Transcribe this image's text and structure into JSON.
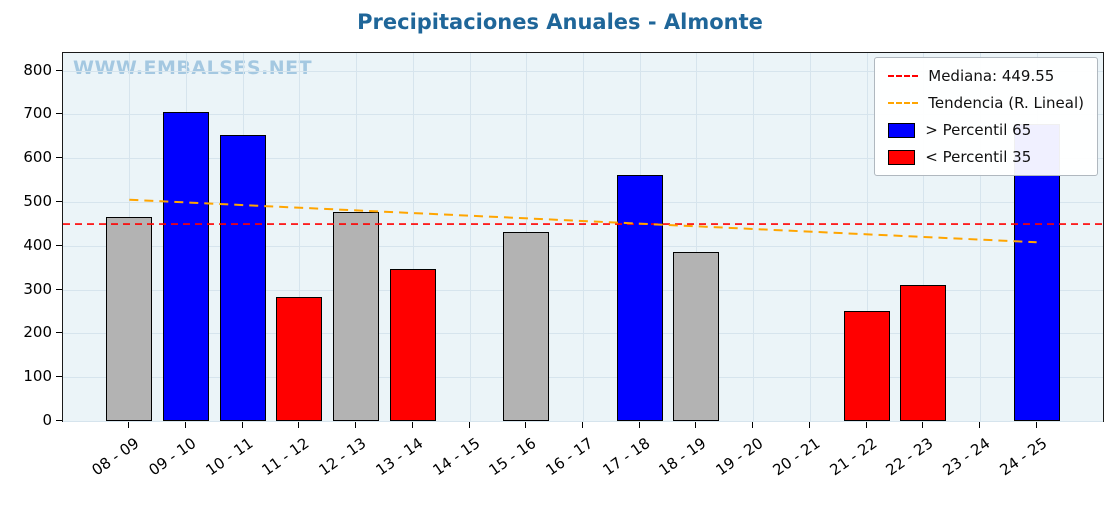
{
  "chart_data": {
    "type": "bar",
    "title": "Precipitaciones Anuales - Almonte",
    "watermark": "WWW.EMBALSES.NET",
    "categories": [
      "08 - 09",
      "09 - 10",
      "10 - 11",
      "11 - 12",
      "12 - 13",
      "13 - 14",
      "14 - 15",
      "15 - 16",
      "16 - 17",
      "17 - 18",
      "18 - 19",
      "19 - 20",
      "20 - 21",
      "21 - 22",
      "22 - 23",
      "23 - 24",
      "24 - 25"
    ],
    "values": [
      465,
      705,
      652,
      282,
      478,
      347,
      0,
      432,
      0,
      562,
      385,
      0,
      0,
      251,
      311,
      0,
      678
    ],
    "bar_colors": [
      "gray",
      "blue",
      "blue",
      "red",
      "gray",
      "red",
      "none",
      "gray",
      "none",
      "blue",
      "gray",
      "none",
      "none",
      "red",
      "red",
      "none",
      "blue"
    ],
    "yticks": [
      0,
      100,
      200,
      300,
      400,
      500,
      600,
      700,
      800
    ],
    "ylim": [
      0,
      840
    ],
    "median": 449.55,
    "trend": {
      "start": 505,
      "end": 408
    },
    "grid": true,
    "legend_position": "top-right",
    "colors": {
      "blue": "#0000ff",
      "red": "#ff0000",
      "gray": "#b3b3b3",
      "median_line": "#ff0000",
      "trend_line": "#ffa500",
      "title": "#1f6699",
      "watermark": "#a4c8e1",
      "plot_bg": "#ebf4f8",
      "grid": "#d6e4ed"
    },
    "legend": [
      {
        "label": "Mediana: 449.55",
        "swatch": "dashed-line",
        "color": "#ff0000"
      },
      {
        "label": "Tendencia (R. Lineal)",
        "swatch": "dashed-line",
        "color": "#ffa500"
      },
      {
        "label": "> Percentil 65",
        "swatch": "patch",
        "color": "#0000ff"
      },
      {
        "label": "< Percentil 35",
        "swatch": "patch",
        "color": "#ff0000"
      }
    ]
  }
}
